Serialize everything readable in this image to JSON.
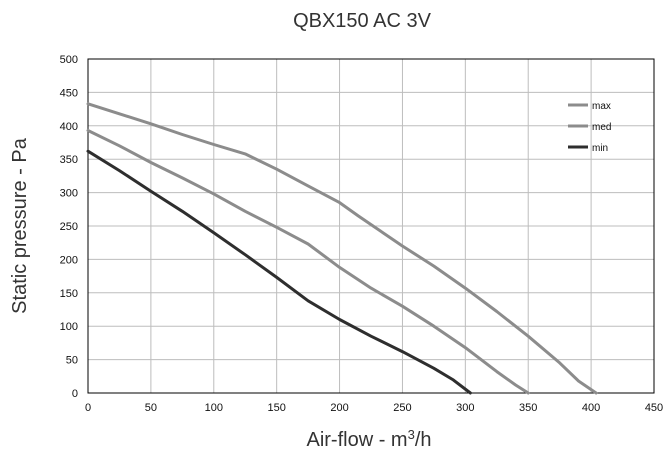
{
  "chart_data": {
    "type": "line",
    "title": "QBX150 AC 3V",
    "xlabel": "Air-flow - m³/h",
    "ylabel": "Static pressure - Pa",
    "xlim": [
      0,
      450
    ],
    "ylim": [
      0,
      500
    ],
    "xticks": [
      0,
      50,
      100,
      150,
      200,
      250,
      300,
      350,
      400,
      450
    ],
    "yticks": [
      0,
      50,
      100,
      150,
      200,
      250,
      300,
      350,
      400,
      450,
      500
    ],
    "grid": true,
    "legend_position": "top-right",
    "series": [
      {
        "name": "max",
        "color": "#8c8c8c",
        "x": [
          0,
          25,
          50,
          75,
          100,
          125,
          150,
          175,
          200,
          215,
          250,
          275,
          300,
          325,
          350,
          375,
          390,
          404
        ],
        "y": [
          433,
          418,
          403,
          387,
          372,
          358,
          335,
          310,
          285,
          265,
          220,
          190,
          157,
          122,
          85,
          45,
          18,
          0
        ]
      },
      {
        "name": "med",
        "color": "#8c8c8c",
        "x": [
          0,
          25,
          50,
          75,
          100,
          125,
          150,
          175,
          200,
          225,
          250,
          275,
          300,
          325,
          340,
          350
        ],
        "y": [
          393,
          370,
          345,
          322,
          298,
          272,
          248,
          223,
          188,
          157,
          130,
          100,
          68,
          32,
          12,
          0
        ]
      },
      {
        "name": "min",
        "color": "#2e2e2e",
        "x": [
          0,
          25,
          50,
          75,
          100,
          125,
          150,
          175,
          200,
          225,
          250,
          275,
          290,
          304
        ],
        "y": [
          362,
          333,
          302,
          272,
          240,
          207,
          173,
          138,
          110,
          85,
          62,
          37,
          20,
          0
        ]
      }
    ]
  }
}
